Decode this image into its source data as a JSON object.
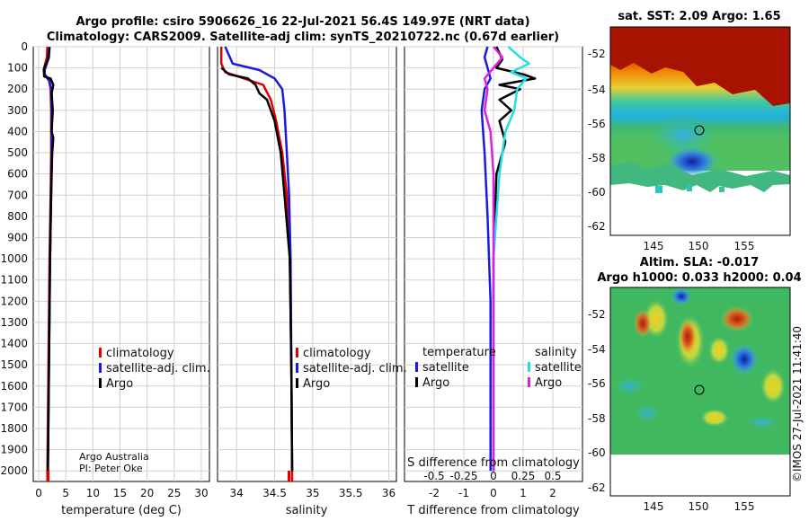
{
  "header": {
    "title_line1": "Argo profile: csiro 5906626_16 22-Jul-2021 56.4S 149.97E (NRT data)",
    "title_line2": "Climatology: CARS2009. Satellite-adj clim: synTS_20210722.nc (0.67d earlier)",
    "credit_line1": "Argo Australia",
    "credit_line2": "PI: Peter Oke",
    "footer": "©IMOS 27-Jul-2021 11:41:40"
  },
  "colors": {
    "climatology": "#e00000",
    "satellite": "#1a1ae0",
    "argo": "#000000",
    "sat_salinity": "#22e0e0",
    "argo_salinity": "#e020e0"
  },
  "depth_axis": {
    "ticks": [
      0,
      100,
      200,
      300,
      400,
      500,
      600,
      700,
      800,
      900,
      1000,
      1100,
      1200,
      1300,
      1400,
      1500,
      1600,
      1700,
      1800,
      1900,
      2000
    ],
    "ylim": [
      0,
      2050
    ]
  },
  "chart_data": [
    {
      "id": "temperature",
      "type": "line",
      "xlabel": "temperature (deg C)",
      "xlim": [
        -1,
        31.5
      ],
      "xticks": [
        0,
        5,
        10,
        15,
        20,
        25,
        30
      ],
      "legend": [
        "climatology",
        "satellite-adj. clim.",
        "Argo"
      ],
      "series": [
        {
          "name": "climatology",
          "color": "#e00000",
          "points": [
            [
              1.6,
              0
            ],
            [
              1.5,
              50
            ],
            [
              0.9,
              110
            ],
            [
              1.0,
              130
            ],
            [
              1.9,
              160
            ],
            [
              2.2,
              200
            ],
            [
              2.3,
              300
            ],
            [
              2.3,
              500
            ],
            [
              2.2,
              700
            ],
            [
              2.0,
              1000
            ],
            [
              1.8,
              1500
            ],
            [
              1.6,
              2000
            ],
            [
              1.6,
              2050
            ]
          ]
        },
        {
          "name": "satellite-adj. clim.",
          "color": "#1a1ae0",
          "points": [
            [
              2.0,
              0
            ],
            [
              1.9,
              50
            ],
            [
              1.1,
              110
            ],
            [
              1.1,
              130
            ],
            [
              2.0,
              160
            ],
            [
              2.3,
              200
            ],
            [
              2.4,
              300
            ],
            [
              2.4,
              500
            ],
            [
              2.3,
              700
            ],
            [
              2.1,
              1000
            ],
            [
              1.9,
              1500
            ],
            [
              1.7,
              2000
            ]
          ]
        },
        {
          "name": "Argo",
          "color": "#000000",
          "points": [
            [
              2.0,
              5
            ],
            [
              1.7,
              60
            ],
            [
              1.0,
              100
            ],
            [
              1.0,
              140
            ],
            [
              2.2,
              150
            ],
            [
              2.7,
              180
            ],
            [
              2.4,
              220
            ],
            [
              2.6,
              300
            ],
            [
              2.4,
              400
            ],
            [
              2.7,
              430
            ],
            [
              2.5,
              500
            ],
            [
              2.3,
              700
            ],
            [
              2.1,
              1000
            ],
            [
              1.9,
              1500
            ],
            [
              1.7,
              2000
            ]
          ]
        }
      ]
    },
    {
      "id": "salinity",
      "type": "line",
      "xlabel": "salinity",
      "xlim": [
        33.75,
        36.1
      ],
      "xticks": [
        34,
        34.5,
        35,
        35.5,
        36
      ],
      "legend": [
        "climatology",
        "satellite-adj. clim.",
        "Argo"
      ],
      "series": [
        {
          "name": "climatology",
          "color": "#e00000",
          "points": [
            [
              33.8,
              0
            ],
            [
              33.8,
              80
            ],
            [
              33.85,
              120
            ],
            [
              34.1,
              150
            ],
            [
              34.35,
              180
            ],
            [
              34.45,
              250
            ],
            [
              34.52,
              350
            ],
            [
              34.6,
              500
            ],
            [
              34.66,
              700
            ],
            [
              34.7,
              1000
            ],
            [
              34.72,
              1500
            ],
            [
              34.73,
              2050
            ]
          ]
        },
        {
          "name": "satellite-adj. clim.",
          "color": "#1a1ae0",
          "points": [
            [
              33.85,
              0
            ],
            [
              33.95,
              80
            ],
            [
              34.3,
              110
            ],
            [
              34.5,
              150
            ],
            [
              34.6,
              200
            ],
            [
              34.63,
              300
            ],
            [
              34.66,
              500
            ],
            [
              34.69,
              700
            ],
            [
              34.71,
              1000
            ],
            [
              34.72,
              1500
            ],
            [
              34.73,
              2000
            ]
          ]
        },
        {
          "name": "Argo",
          "color": "#000000",
          "points": [
            [
              33.8,
              100
            ],
            [
              33.9,
              130
            ],
            [
              34.15,
              150
            ],
            [
              34.25,
              180
            ],
            [
              34.3,
              220
            ],
            [
              34.4,
              250
            ],
            [
              34.5,
              350
            ],
            [
              34.58,
              500
            ],
            [
              34.63,
              700
            ],
            [
              34.7,
              1000
            ],
            [
              34.72,
              1500
            ],
            [
              34.73,
              2000
            ]
          ]
        }
      ]
    },
    {
      "id": "difference",
      "type": "line",
      "xlabel": "T difference from climatology",
      "xlabel_top": "S difference from climatology",
      "xlim": [
        -3,
        3
      ],
      "xticks": [
        -2,
        -1,
        0,
        1,
        2
      ],
      "xticks_top": [
        "-0.5",
        "-0.25",
        "0",
        "0.25",
        "0.5"
      ],
      "legend_left_title": "temperature",
      "legend_right_title": "salinity",
      "legend_left": [
        "satellite",
        "Argo"
      ],
      "legend_right": [
        "satellite",
        "Argo"
      ],
      "series": [
        {
          "name": "temperature satellite",
          "color": "#1a1ae0",
          "points": [
            [
              -0.2,
              0
            ],
            [
              -0.3,
              50
            ],
            [
              -0.2,
              100
            ],
            [
              -0.1,
              150
            ],
            [
              -0.3,
              200
            ],
            [
              -0.4,
              300
            ],
            [
              -0.3,
              500
            ],
            [
              -0.2,
              800
            ],
            [
              -0.1,
              1200
            ],
            [
              -0.1,
              2000
            ]
          ]
        },
        {
          "name": "temperature Argo",
          "color": "#000000",
          "points": [
            [
              0.1,
              0
            ],
            [
              0.3,
              60
            ],
            [
              0.1,
              100
            ],
            [
              1.0,
              130
            ],
            [
              1.4,
              150
            ],
            [
              0.2,
              180
            ],
            [
              0.9,
              200
            ],
            [
              0.2,
              250
            ],
            [
              0.6,
              300
            ],
            [
              0.2,
              350
            ],
            [
              0.4,
              450
            ],
            [
              0.1,
              600
            ],
            [
              0.0,
              1000
            ],
            [
              0.0,
              2000
            ]
          ]
        },
        {
          "name": "salinity satellite",
          "color": "#22e0e0",
          "points": [
            [
              0.5,
              0
            ],
            [
              0.9,
              50
            ],
            [
              1.2,
              80
            ],
            [
              0.6,
              120
            ],
            [
              1.1,
              150
            ],
            [
              0.8,
              200
            ],
            [
              0.7,
              300
            ],
            [
              0.4,
              400
            ],
            [
              0.2,
              600
            ],
            [
              0.0,
              1000
            ],
            [
              0.0,
              2000
            ]
          ]
        },
        {
          "name": "salinity Argo",
          "color": "#e020e0",
          "points": [
            [
              0.0,
              0
            ],
            [
              0.3,
              50
            ],
            [
              0.0,
              100
            ],
            [
              -0.3,
              150
            ],
            [
              -0.2,
              200
            ],
            [
              -0.3,
              300
            ],
            [
              -0.1,
              400
            ],
            [
              0.0,
              600
            ],
            [
              0.0,
              2000
            ]
          ]
        }
      ]
    }
  ],
  "maps": {
    "sst": {
      "title": "sat. SST: 2.09 Argo: 1.65",
      "yticks": [
        "-52",
        "-54",
        "-56",
        "-58",
        "-60",
        "-62"
      ],
      "xticks": [
        "145",
        "150",
        "155"
      ]
    },
    "sla": {
      "title_line1": "Altim. SLA: -0.017",
      "title_line2": "Argo h1000: 0.033 h2000: 0.04",
      "yticks": [
        "-52",
        "-54",
        "-56",
        "-58",
        "-60",
        "-62"
      ],
      "xticks": [
        "145",
        "150",
        "155"
      ]
    }
  }
}
